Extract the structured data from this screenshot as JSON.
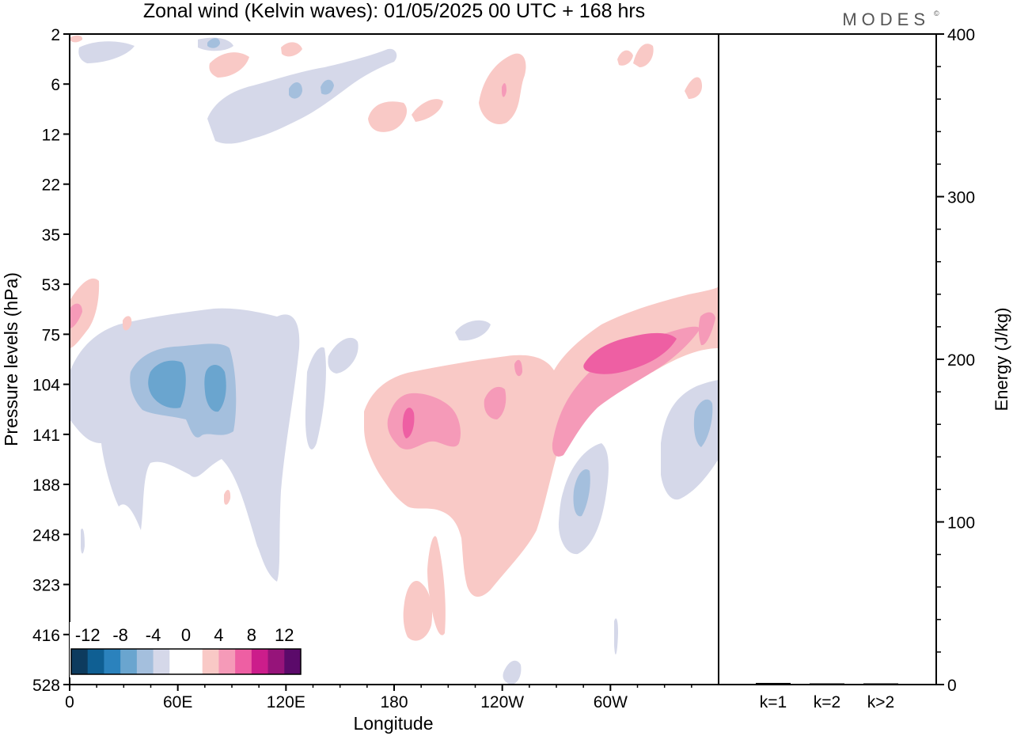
{
  "title": "Zonal wind (Kelvin waves):  01/05/2025  00 UTC  + 168 hrs",
  "brand": "MODES",
  "brand_mark": "©",
  "chart_data": [
    {
      "type": "heatmap",
      "xlabel": "Longitude",
      "ylabel": "Pressure levels (hPa)",
      "x_ticks": [
        "0",
        "60E",
        "120E",
        "180",
        "120W",
        "60W"
      ],
      "y_ticks": [
        "2",
        "6",
        "12",
        "22",
        "35",
        "53",
        "75",
        "104",
        "141",
        "188",
        "248",
        "323",
        "416",
        "528"
      ],
      "xlim": [
        0,
        360
      ],
      "levels_ordered_top_to_bottom": true,
      "colorbar": {
        "labels": [
          "-12",
          "-8",
          "-4",
          "0",
          "4",
          "8",
          "12"
        ],
        "colors": [
          "#0d3b5e",
          "#0f5f93",
          "#2b82bd",
          "#6aa5cf",
          "#a4bfdd",
          "#d5d8e9",
          "#ffffff",
          "#ffffff",
          "#f9c9c6",
          "#f59ab8",
          "#ee5fa3",
          "#cc1d8b",
          "#96147a",
          "#5b0a6a"
        ]
      },
      "features": [
        {
          "sign": "negative",
          "lon": [
            0,
            135
          ],
          "levels": [
            "75",
            "323"
          ],
          "peak": -8
        },
        {
          "sign": "positive",
          "lon": [
            165,
            360
          ],
          "levels": [
            "53",
            "416"
          ],
          "peak": 10
        },
        {
          "sign": "negative",
          "lon": [
            270,
            360
          ],
          "levels": [
            "104",
            "323"
          ],
          "peak": -6
        },
        {
          "sign": "negative",
          "lon": [
            80,
            170
          ],
          "levels": [
            "2",
            "12"
          ],
          "peak": -6
        },
        {
          "sign": "positive",
          "lon": [
            160,
            330
          ],
          "levels": [
            "2",
            "12"
          ],
          "peak": 6
        }
      ]
    },
    {
      "type": "bar",
      "categories": [
        "k=1",
        "k=2",
        "k>2"
      ],
      "values": [
        1,
        0,
        0
      ],
      "ylabel": "Energy (J/kg)",
      "y_ticks": [
        "0",
        "100",
        "200",
        "300",
        "400"
      ],
      "ylim": [
        0,
        400
      ]
    }
  ]
}
